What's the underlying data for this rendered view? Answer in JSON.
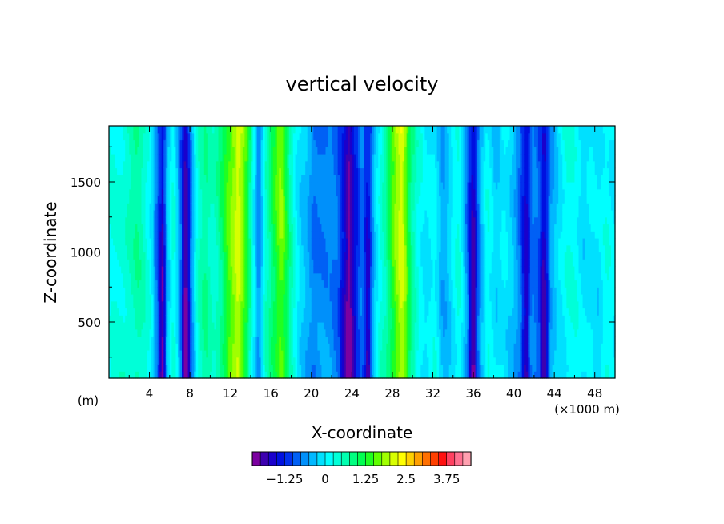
{
  "chart_data": {
    "type": "heatmap",
    "title": "vertical velocity",
    "xlabel": "X-coordinate",
    "ylabel": "Z-coordinate",
    "x_unit_left": "(m)",
    "x_unit_right": "(×1000 m)",
    "xlim": [
      0,
      50
    ],
    "ylim": [
      100,
      1900
    ],
    "x_ticks": [
      4,
      8,
      12,
      16,
      20,
      24,
      28,
      32,
      36,
      40,
      44,
      48
    ],
    "y_ticks": [
      500,
      1000,
      1500
    ],
    "colorbar": {
      "min": -2.25,
      "max": 4.0,
      "step": 0.25,
      "labels": [
        "-1.25",
        "0",
        "1.25",
        "2.5",
        "3.75"
      ],
      "label_values": [
        -1.25,
        0,
        1.25,
        2.5,
        3.75
      ],
      "colors": [
        "#7b00a0",
        "#3d00b0",
        "#1a00cc",
        "#0010e0",
        "#0030ee",
        "#0060f5",
        "#0090fa",
        "#00b8ff",
        "#00e0ff",
        "#00ffff",
        "#00ffd8",
        "#00ffb0",
        "#00ff80",
        "#00ff50",
        "#20ff20",
        "#60ff00",
        "#a0ff00",
        "#d8ff00",
        "#ffff00",
        "#ffd000",
        "#ffa000",
        "#ff7000",
        "#ff4000",
        "#ff1010",
        "#ff4060",
        "#ff7090",
        "#ffa0b0"
      ]
    },
    "x_bands": [
      {
        "x": 0.0,
        "v": 0.1
      },
      {
        "x": 1.0,
        "v": 0.3
      },
      {
        "x": 1.8,
        "v": 0.55
      },
      {
        "x": 2.8,
        "v": 0.65
      },
      {
        "x": 3.6,
        "v": 0.35
      },
      {
        "x": 4.2,
        "v": 0.15
      },
      {
        "x": 4.8,
        "v": -0.8
      },
      {
        "x": 5.3,
        "v": -1.8
      },
      {
        "x": 5.8,
        "v": -0.4
      },
      {
        "x": 6.4,
        "v": 0.3
      },
      {
        "x": 7.0,
        "v": -0.5
      },
      {
        "x": 7.6,
        "v": -2.0
      },
      {
        "x": 8.2,
        "v": -0.6
      },
      {
        "x": 8.8,
        "v": 0.3
      },
      {
        "x": 9.6,
        "v": 0.8
      },
      {
        "x": 10.4,
        "v": 0.5
      },
      {
        "x": 11.2,
        "v": 0.9
      },
      {
        "x": 12.0,
        "v": 1.6
      },
      {
        "x": 12.8,
        "v": 2.3
      },
      {
        "x": 13.6,
        "v": 1.4
      },
      {
        "x": 14.2,
        "v": 0.1
      },
      {
        "x": 14.8,
        "v": -0.9
      },
      {
        "x": 15.4,
        "v": 0.4
      },
      {
        "x": 16.2,
        "v": 1.2
      },
      {
        "x": 17.0,
        "v": 1.7
      },
      {
        "x": 17.8,
        "v": 0.7
      },
      {
        "x": 18.6,
        "v": 0.1
      },
      {
        "x": 19.4,
        "v": -0.3
      },
      {
        "x": 20.2,
        "v": -0.9
      },
      {
        "x": 21.0,
        "v": -0.7
      },
      {
        "x": 21.8,
        "v": -0.5
      },
      {
        "x": 22.6,
        "v": -0.9
      },
      {
        "x": 23.2,
        "v": -1.6
      },
      {
        "x": 23.7,
        "v": -2.1
      },
      {
        "x": 24.3,
        "v": -1.3
      },
      {
        "x": 25.0,
        "v": -0.7
      },
      {
        "x": 25.6,
        "v": -1.7
      },
      {
        "x": 26.2,
        "v": -0.4
      },
      {
        "x": 26.8,
        "v": 0.3
      },
      {
        "x": 27.4,
        "v": 0.8
      },
      {
        "x": 28.2,
        "v": 1.6
      },
      {
        "x": 29.0,
        "v": 2.1
      },
      {
        "x": 29.8,
        "v": 1.0
      },
      {
        "x": 30.6,
        "v": 0.3
      },
      {
        "x": 31.4,
        "v": -0.2
      },
      {
        "x": 32.2,
        "v": 0.1
      },
      {
        "x": 33.0,
        "v": -0.4
      },
      {
        "x": 33.8,
        "v": -0.1
      },
      {
        "x": 34.6,
        "v": 0.2
      },
      {
        "x": 35.4,
        "v": -0.7
      },
      {
        "x": 36.0,
        "v": -1.8
      },
      {
        "x": 36.6,
        "v": -0.6
      },
      {
        "x": 37.4,
        "v": 0.1
      },
      {
        "x": 38.2,
        "v": -0.2
      },
      {
        "x": 39.0,
        "v": 0.15
      },
      {
        "x": 39.8,
        "v": -0.3
      },
      {
        "x": 40.6,
        "v": -0.9
      },
      {
        "x": 41.2,
        "v": -1.6
      },
      {
        "x": 41.8,
        "v": -0.6
      },
      {
        "x": 42.4,
        "v": -0.9
      },
      {
        "x": 43.0,
        "v": -1.9
      },
      {
        "x": 43.6,
        "v": -0.6
      },
      {
        "x": 44.4,
        "v": 0.0
      },
      {
        "x": 45.2,
        "v": 0.25
      },
      {
        "x": 46.0,
        "v": 0.1
      },
      {
        "x": 46.8,
        "v": -0.1
      },
      {
        "x": 47.6,
        "v": 0.1
      },
      {
        "x": 48.4,
        "v": -0.2
      },
      {
        "x": 49.2,
        "v": 0.15
      },
      {
        "x": 50.0,
        "v": 0.1
      }
    ]
  }
}
